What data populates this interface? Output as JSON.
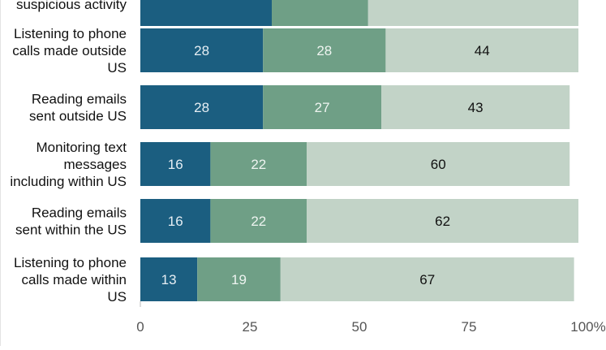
{
  "chart_data": {
    "type": "bar",
    "orientation": "horizontal",
    "stacked": true,
    "categories": [
      [
        "suspicious activity"
      ],
      [
        "Listening to phone",
        "calls made outside",
        "US"
      ],
      [
        "Reading emails",
        "sent outside US"
      ],
      [
        "Monitoring text",
        "messages",
        "including within US"
      ],
      [
        "Reading emails",
        "sent within the US"
      ],
      [
        "Listening to phone",
        "calls made within",
        "US"
      ]
    ],
    "series": [
      {
        "color": "#1b5e80",
        "label_color": "#e6eef3",
        "values": [
          30,
          28,
          28,
          16,
          16,
          13
        ],
        "labels": [
          "",
          "28",
          "28",
          "16",
          "16",
          "13"
        ]
      },
      {
        "color": "#6f9f86",
        "label_color": "#eef4f0",
        "values": [
          22,
          28,
          27,
          22,
          22,
          19
        ],
        "labels": [
          "",
          "28",
          "27",
          "22",
          "22",
          "19"
        ]
      },
      {
        "color": "#c2d3c7",
        "label_color": "#111111",
        "values": [
          48,
          44,
          43,
          60,
          62,
          67
        ],
        "labels": [
          "",
          "44",
          "43",
          "60",
          "62",
          "67"
        ]
      }
    ],
    "xlim": [
      0,
      100
    ],
    "xticks": [
      "0",
      "25",
      "50",
      "75",
      "100%"
    ],
    "grid": false,
    "legend": "none"
  }
}
